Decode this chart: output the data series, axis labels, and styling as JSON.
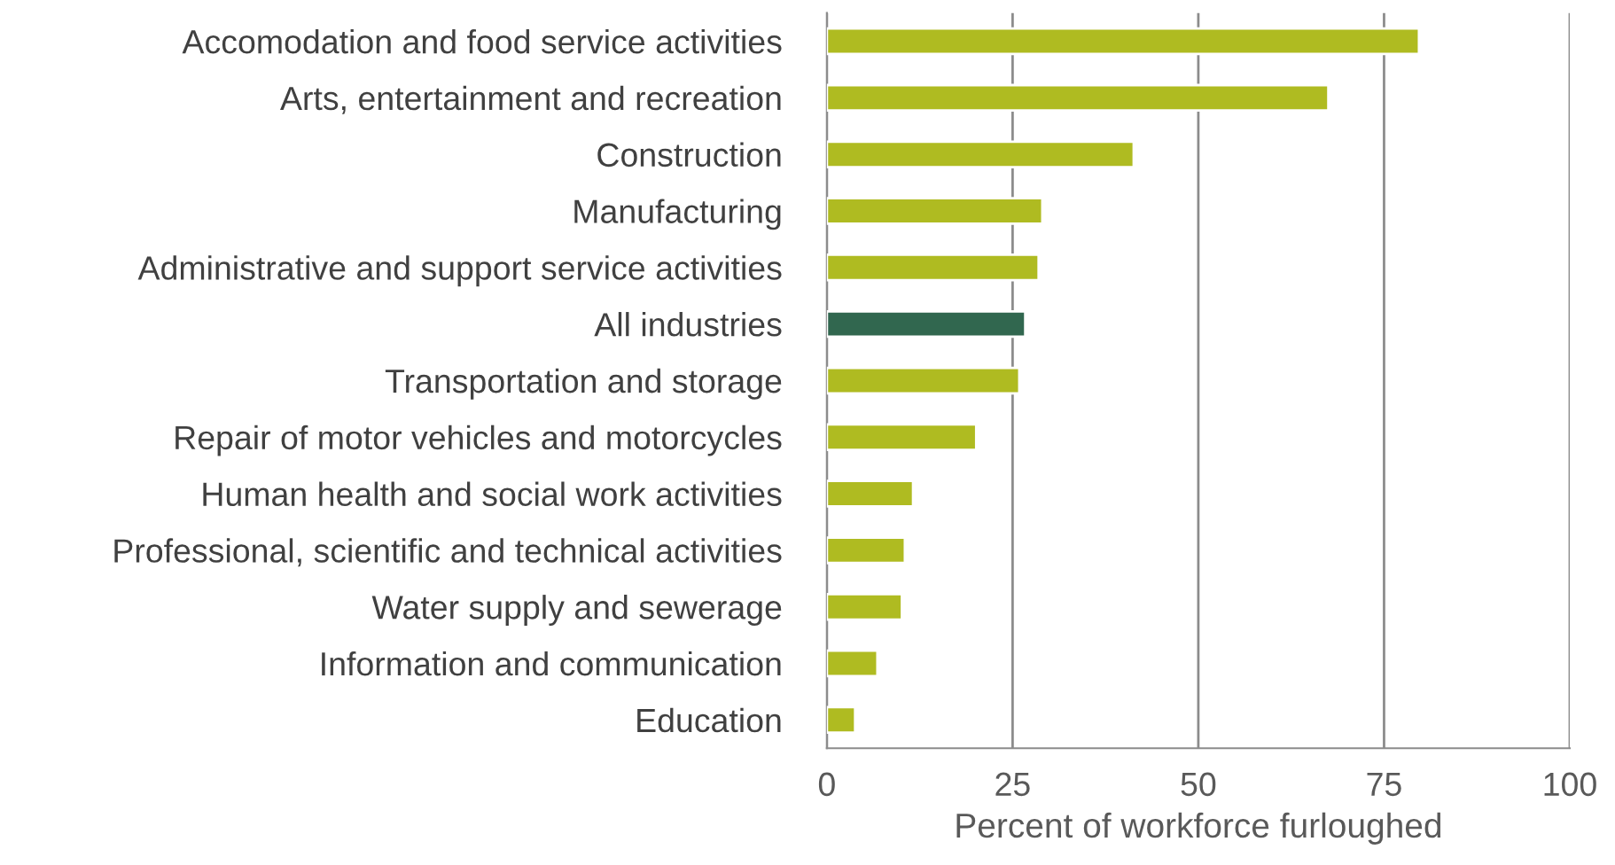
{
  "chart_data": {
    "type": "bar",
    "orientation": "horizontal",
    "xlabel": "Percent of workforce furloughed",
    "categories": [
      "Accomodation and food service activities",
      "Arts, entertainment and recreation",
      "Construction",
      "Manufacturing",
      "Administrative and support service activities",
      "All industries",
      "Transportation and storage",
      "Repair of motor vehicles and motorcycles",
      "Human health and social work activities",
      "Professional, scientific and technical activities",
      "Water supply and sewerage",
      "Information and communication",
      "Education"
    ],
    "values": [
      79.7,
      67.5,
      41.3,
      29.0,
      28.5,
      26.7,
      25.9,
      20.1,
      11.6,
      10.5,
      10.1,
      6.8,
      3.8
    ],
    "colors": [
      "#afbb21",
      "#afbb21",
      "#afbb21",
      "#afbb21",
      "#afbb21",
      "#31674f",
      "#afbb21",
      "#afbb21",
      "#afbb21",
      "#afbb21",
      "#afbb21",
      "#afbb21",
      "#afbb21"
    ],
    "xlim": [
      0,
      100
    ],
    "xticks": [
      0,
      25,
      50,
      75,
      100
    ],
    "grid": "x",
    "legend": false
  }
}
